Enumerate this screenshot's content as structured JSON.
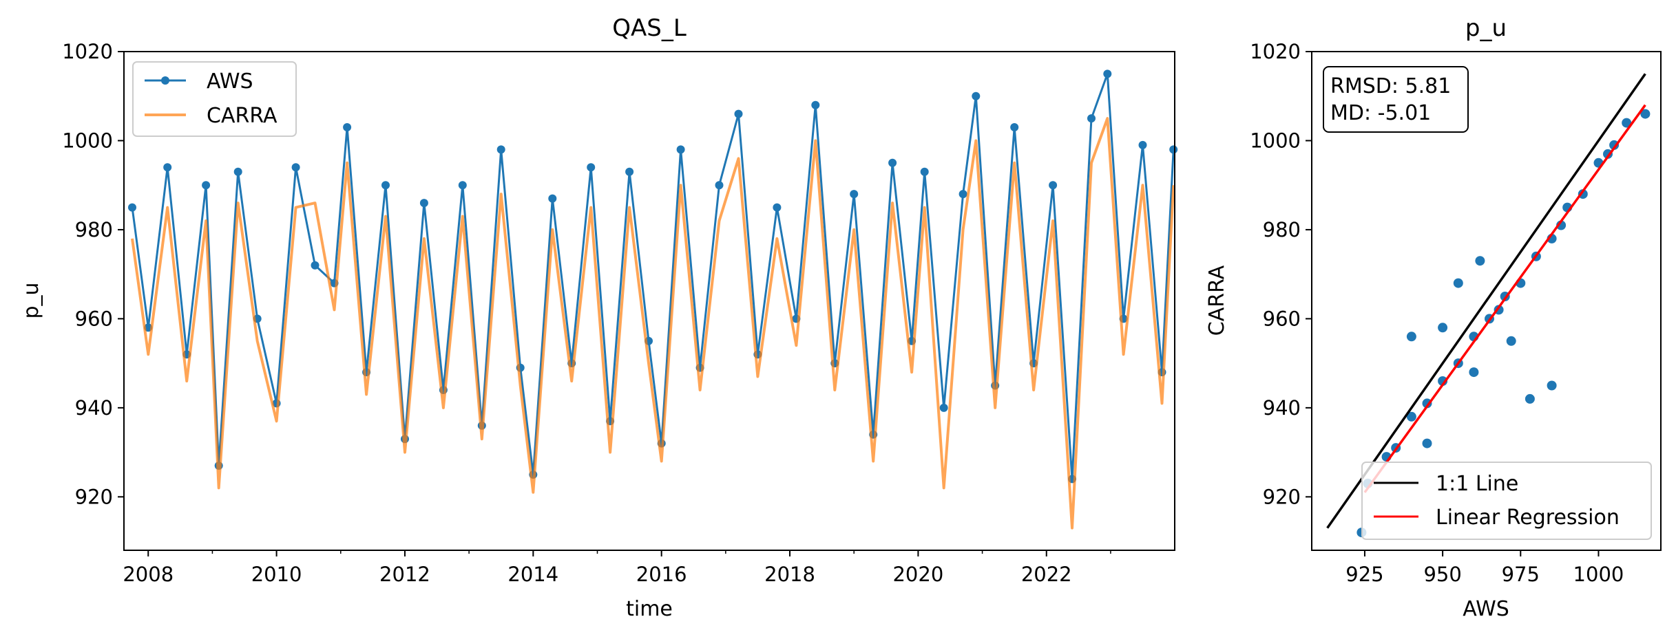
{
  "chart_data": [
    {
      "type": "line",
      "title": "QAS_L",
      "xlabel": "time",
      "ylabel": "p_u",
      "xlim": [
        "2007-08-15",
        "2023-12-31"
      ],
      "ylim": [
        908,
        1020
      ],
      "x_ticks": [
        "2008",
        "2010",
        "2012",
        "2014",
        "2016",
        "2018",
        "2020",
        "2022"
      ],
      "y_ticks": [
        920,
        940,
        960,
        980,
        1000,
        1020
      ],
      "legend": {
        "position": "top-left",
        "entries": [
          "AWS",
          "CARRA"
        ]
      },
      "grid": false,
      "x_unit": "year",
      "series": [
        {
          "name": "AWS",
          "color": "#1f77b4",
          "marker": "circle",
          "x": [
            2007.75,
            2008.0,
            2008.3,
            2008.6,
            2008.9,
            2009.1,
            2009.4,
            2009.7,
            2010.0,
            2010.3,
            2010.6,
            2010.9,
            2011.1,
            2011.4,
            2011.7,
            2012.0,
            2012.3,
            2012.6,
            2012.9,
            2013.2,
            2013.5,
            2013.8,
            2014.0,
            2014.3,
            2014.6,
            2014.9,
            2015.2,
            2015.5,
            2015.8,
            2016.0,
            2016.3,
            2016.6,
            2016.9,
            2017.2,
            2017.5,
            2017.8,
            2018.1,
            2018.4,
            2018.7,
            2019.0,
            2019.3,
            2019.6,
            2019.9,
            2020.1,
            2020.4,
            2020.7,
            2020.9,
            2021.2,
            2021.5,
            2021.8,
            2022.1,
            2022.4,
            2022.7,
            2022.95,
            2023.2,
            2023.5,
            2023.8,
            2023.98
          ],
          "y": [
            985,
            958,
            994,
            952,
            990,
            927,
            993,
            960,
            941,
            994,
            972,
            968,
            1003,
            948,
            990,
            933,
            986,
            944,
            990,
            936,
            998,
            949,
            925,
            987,
            950,
            994,
            937,
            993,
            955,
            932,
            998,
            949,
            990,
            1006,
            952,
            985,
            960,
            1008,
            950,
            988,
            934,
            995,
            955,
            993,
            940,
            988,
            1010,
            945,
            1003,
            950,
            990,
            924,
            1005,
            1015,
            960,
            999,
            948,
            998
          ]
        },
        {
          "name": "CARRA",
          "color": "#ff7f0e",
          "x": [
            2007.75,
            2008.0,
            2008.3,
            2008.6,
            2008.9,
            2009.1,
            2009.4,
            2009.7,
            2010.0,
            2010.3,
            2010.6,
            2010.9,
            2011.1,
            2011.4,
            2011.7,
            2012.0,
            2012.3,
            2012.6,
            2012.9,
            2013.2,
            2013.5,
            2013.8,
            2014.0,
            2014.3,
            2014.6,
            2014.9,
            2015.2,
            2015.5,
            2015.8,
            2016.0,
            2016.3,
            2016.6,
            2016.9,
            2017.2,
            2017.5,
            2017.8,
            2018.1,
            2018.4,
            2018.7,
            2019.0,
            2019.3,
            2019.6,
            2019.9,
            2020.1,
            2020.4,
            2020.7,
            2020.9,
            2021.2,
            2021.5,
            2021.8,
            2022.1,
            2022.4,
            2022.7,
            2022.95,
            2023.2,
            2023.5,
            2023.8,
            2023.98
          ],
          "y": [
            978,
            952,
            985,
            946,
            982,
            922,
            986,
            955,
            937,
            985,
            986,
            962,
            995,
            943,
            983,
            930,
            978,
            940,
            983,
            933,
            988,
            945,
            921,
            980,
            946,
            985,
            930,
            985,
            950,
            928,
            990,
            944,
            982,
            996,
            947,
            978,
            954,
            1000,
            944,
            980,
            928,
            986,
            948,
            985,
            922,
            980,
            1000,
            940,
            995,
            944,
            982,
            913,
            995,
            1005,
            952,
            990,
            941,
            990
          ]
        }
      ]
    },
    {
      "type": "scatter",
      "title": "p_u",
      "xlabel": "AWS",
      "ylabel": "CARRA",
      "xlim": [
        908,
        1020
      ],
      "ylim": [
        908,
        1020
      ],
      "x_ticks": [
        925,
        950,
        975,
        1000
      ],
      "y_ticks": [
        920,
        940,
        960,
        980,
        1000,
        1020
      ],
      "annotation": {
        "position": "top-left",
        "lines": [
          "RMSD: 5.81",
          "MD: -5.01"
        ]
      },
      "legend": {
        "position": "bottom-right",
        "entries": [
          "1:1 Line",
          "Linear Regression"
        ]
      },
      "grid": false,
      "series": [
        {
          "name": "AWS vs CARRA",
          "color": "#1f77b4",
          "marker": "circle",
          "points": [
            [
              926,
              923
            ],
            [
              932,
              929
            ],
            [
              940,
              938
            ],
            [
              950,
              946
            ],
            [
              960,
              956
            ],
            [
              970,
              965
            ],
            [
              980,
              974
            ],
            [
              988,
              981
            ],
            [
              995,
              988
            ],
            [
              1003,
              997
            ],
            [
              1009,
              1004
            ],
            [
              1015,
              1006
            ],
            [
              990,
              985
            ],
            [
              975,
              968
            ],
            [
              955,
              950
            ],
            [
              945,
              941
            ],
            [
              965,
              960
            ],
            [
              985,
              978
            ],
            [
              935,
              931
            ],
            [
              940,
              956
            ],
            [
              955,
              968
            ],
            [
              962,
              973
            ],
            [
              945,
              932
            ],
            [
              950,
              958
            ],
            [
              978,
              942
            ],
            [
              972,
              955
            ],
            [
              968,
              962
            ],
            [
              960,
              948
            ],
            [
              985,
              945
            ],
            [
              1005,
              999
            ],
            [
              1000,
              995
            ],
            [
              924,
              912
            ]
          ]
        },
        {
          "name": "1:1 Line",
          "color": "#000000",
          "x": [
            913,
            1015
          ],
          "y": [
            913,
            1015
          ]
        },
        {
          "name": "Linear Regression",
          "color": "#ff0000",
          "x": [
            925,
            1015
          ],
          "y": [
            921,
            1008
          ]
        }
      ]
    }
  ]
}
